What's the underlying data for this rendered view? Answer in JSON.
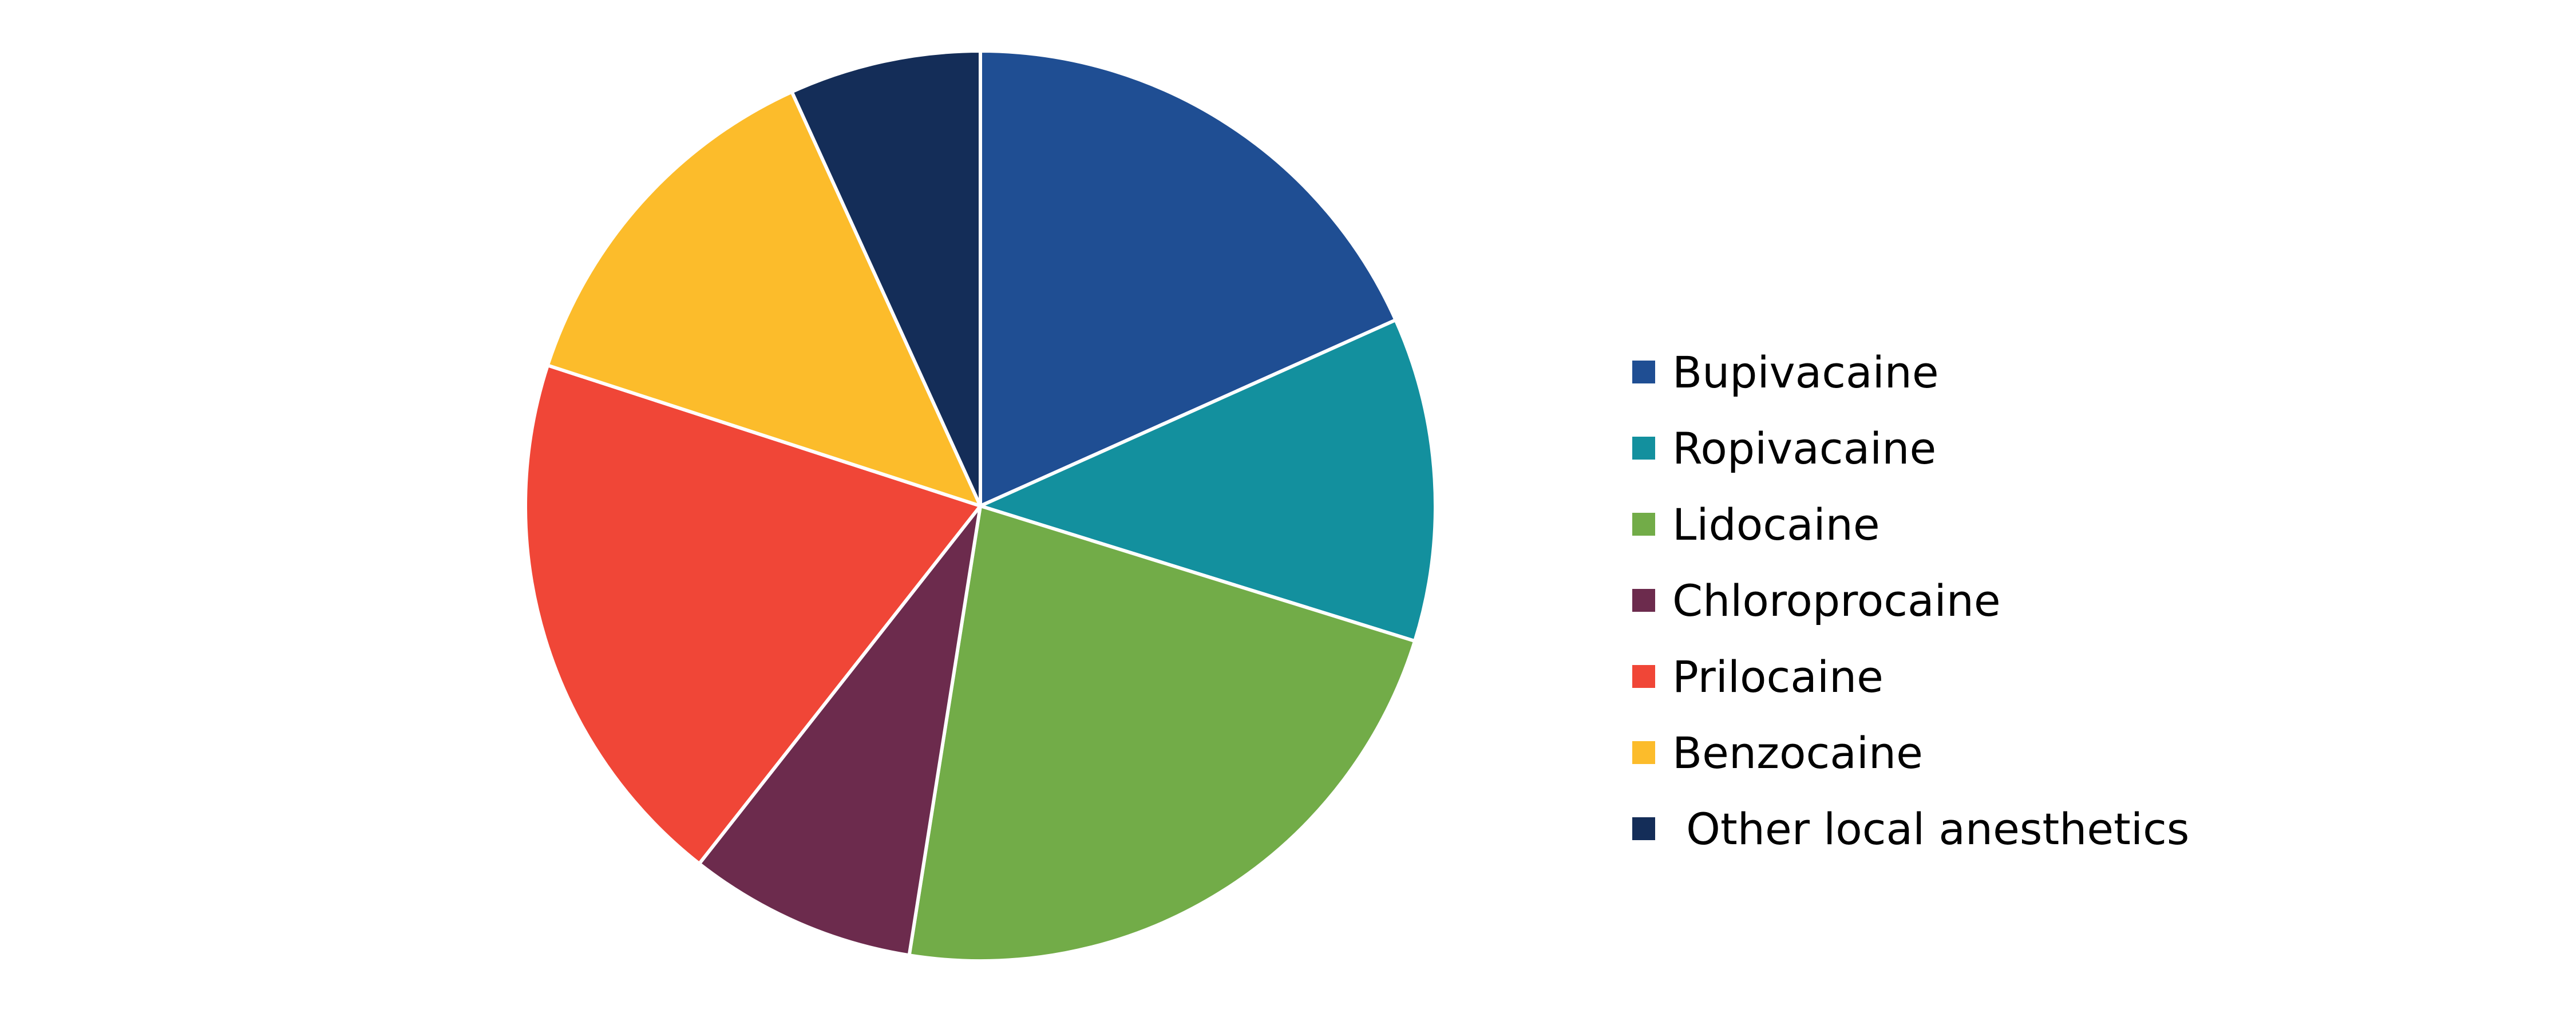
{
  "chart_data": {
    "type": "pie",
    "title": "",
    "start_angle_deg": 0,
    "direction": "clockwise",
    "legend_position": "right",
    "slice_separator_color": "#ffffff",
    "series": [
      {
        "name": "Bupivacaine",
        "value": 18.3,
        "color": "#1F4E93"
      },
      {
        "name": "Ropivacaine",
        "value": 11.5,
        "color": "#13909E"
      },
      {
        "name": "Lidocaine",
        "value": 22.7,
        "color": "#72AC48"
      },
      {
        "name": "Chloroprocaine",
        "value": 8.1,
        "color": "#6C2B4D"
      },
      {
        "name": "Prilocaine",
        "value": 19.4,
        "color": "#F04637"
      },
      {
        "name": "Benzocaine",
        "value": 13.2,
        "color": "#FCBC2B"
      },
      {
        "name": " Other local anesthetics",
        "value": 6.8,
        "color": "#142D58"
      }
    ]
  }
}
